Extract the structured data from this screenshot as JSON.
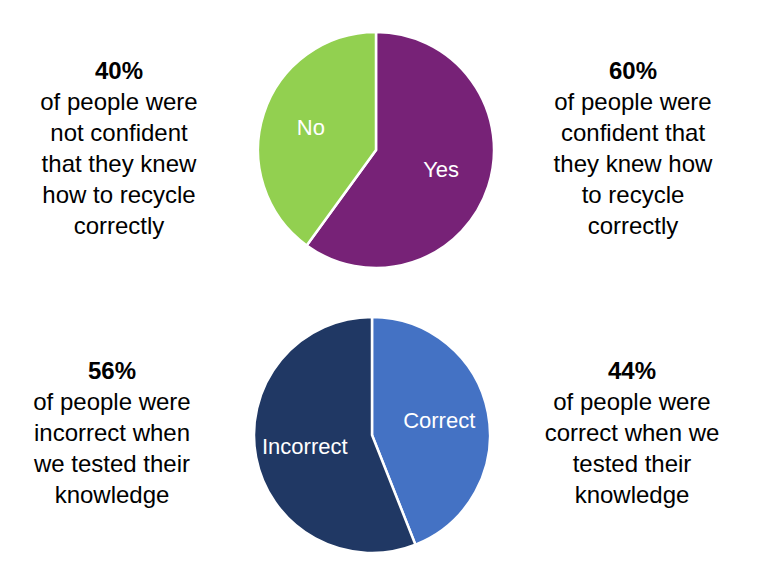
{
  "chart_data": [
    {
      "type": "pie",
      "categories": [
        "Yes",
        "No"
      ],
      "values": [
        60,
        40
      ],
      "value_labels": [
        "60%",
        "40%"
      ],
      "colors": [
        "#772277",
        "#92d050"
      ],
      "data_labels": true,
      "annotations": [
        [
          "of people were",
          "confident that",
          "they knew how",
          "to recycle",
          "correctly"
        ],
        [
          "of people were",
          "not confident",
          "that they knew",
          "how to recycle",
          "correctly"
        ]
      ]
    },
    {
      "type": "pie",
      "categories": [
        "Correct",
        "Incorrect"
      ],
      "values": [
        44,
        56
      ],
      "value_labels": [
        "44%",
        "56%"
      ],
      "colors": [
        "#4472c4",
        "#203864"
      ],
      "data_labels": true,
      "annotations": [
        [
          "of people were",
          "correct when we",
          "tested their",
          "knowledge"
        ],
        [
          "of people were",
          "incorrect when",
          "we tested their",
          "knowledge"
        ]
      ]
    }
  ]
}
